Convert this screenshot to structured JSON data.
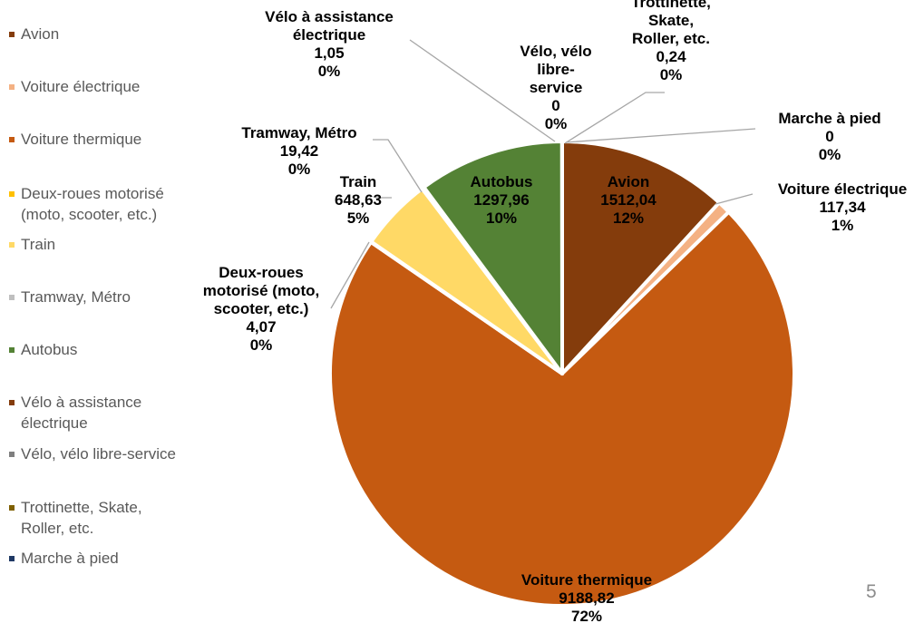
{
  "slide": {
    "page_number": "5"
  },
  "chart_data": {
    "type": "pie",
    "legend_position": "left",
    "series": [
      {
        "values": [
          1512.04,
          117.34,
          9188.82,
          4.07,
          648.63,
          19.42,
          1297.96,
          1.05,
          0,
          0.24,
          0
        ]
      }
    ],
    "slices": [
      {
        "name": "Avion",
        "legend_label": "Avion",
        "label_lines": [
          "Avion"
        ],
        "value": 1512.04,
        "value_label": "1512,04",
        "percent_label": "12%",
        "color": "#843C0C"
      },
      {
        "name": "Voiture électrique",
        "legend_label": "Voiture électrique",
        "label_lines": [
          "Voiture électrique"
        ],
        "value": 117.34,
        "value_label": "117,34",
        "percent_label": "1%",
        "color": "#F4B183"
      },
      {
        "name": "Voiture thermique",
        "legend_label": "Voiture thermique",
        "label_lines": [
          "Voiture thermique"
        ],
        "value": 9188.82,
        "value_label": "9188,82",
        "percent_label": "72%",
        "color": "#C55A11"
      },
      {
        "name": "Deux-roues motorisé (moto, scooter, etc.)",
        "legend_label": "Deux-roues motorisé (moto, scooter, etc.)",
        "legend_lines": [
          "Deux-roues motorisé",
          "(moto, scooter, etc.)"
        ],
        "label_lines": [
          "Deux-roues",
          "motorisé (moto,",
          "scooter, etc.)"
        ],
        "value": 4.07,
        "value_label": "4,07",
        "percent_label": "0%",
        "color": "#FFC000"
      },
      {
        "name": "Train",
        "legend_label": "Train",
        "label_lines": [
          "Train"
        ],
        "value": 648.63,
        "value_label": "648,63",
        "percent_label": "5%",
        "color": "#FFD966"
      },
      {
        "name": "Tramway, Métro",
        "legend_label": "Tramway, Métro",
        "label_lines": [
          "Tramway, Métro"
        ],
        "value": 19.42,
        "value_label": "19,42",
        "percent_label": "0%",
        "color": "#BFBFBF"
      },
      {
        "name": "Autobus",
        "legend_label": "Autobus",
        "label_lines": [
          "Autobus"
        ],
        "value": 1297.96,
        "value_label": "1297,96",
        "percent_label": "10%",
        "color": "#548235"
      },
      {
        "name": "Vélo à assistance électrique",
        "legend_label": "Vélo à assistance électrique",
        "legend_lines": [
          "Vélo à assistance",
          "électrique"
        ],
        "label_lines": [
          "Vélo à assistance",
          "électrique"
        ],
        "value": 1.05,
        "value_label": "1,05",
        "percent_label": "0%",
        "color": "#843C0C"
      },
      {
        "name": "Vélo, vélo libre-service",
        "legend_label": "Vélo, vélo libre-service",
        "label_lines": [
          "Vélo, vélo",
          "libre-",
          "service"
        ],
        "value": 0,
        "value_label": "0",
        "percent_label": "0%",
        "color": "#7F7F7F"
      },
      {
        "name": "Trottinette, Skate, Roller, etc.",
        "legend_label": "Trottinette, Skate, Roller, etc.",
        "legend_lines": [
          "Trottinette, Skate,",
          "Roller, etc."
        ],
        "label_lines": [
          "Trottinette,",
          "Skate,",
          "Roller, etc."
        ],
        "value": 0.24,
        "value_label": "0,24",
        "percent_label": "0%",
        "color": "#7F6000"
      },
      {
        "name": "Marche à pied",
        "legend_label": "Marche à pied",
        "label_lines": [
          "Marche à pied"
        ],
        "value": 0,
        "value_label": "0",
        "percent_label": "0%",
        "color": "#1F3864"
      }
    ]
  }
}
